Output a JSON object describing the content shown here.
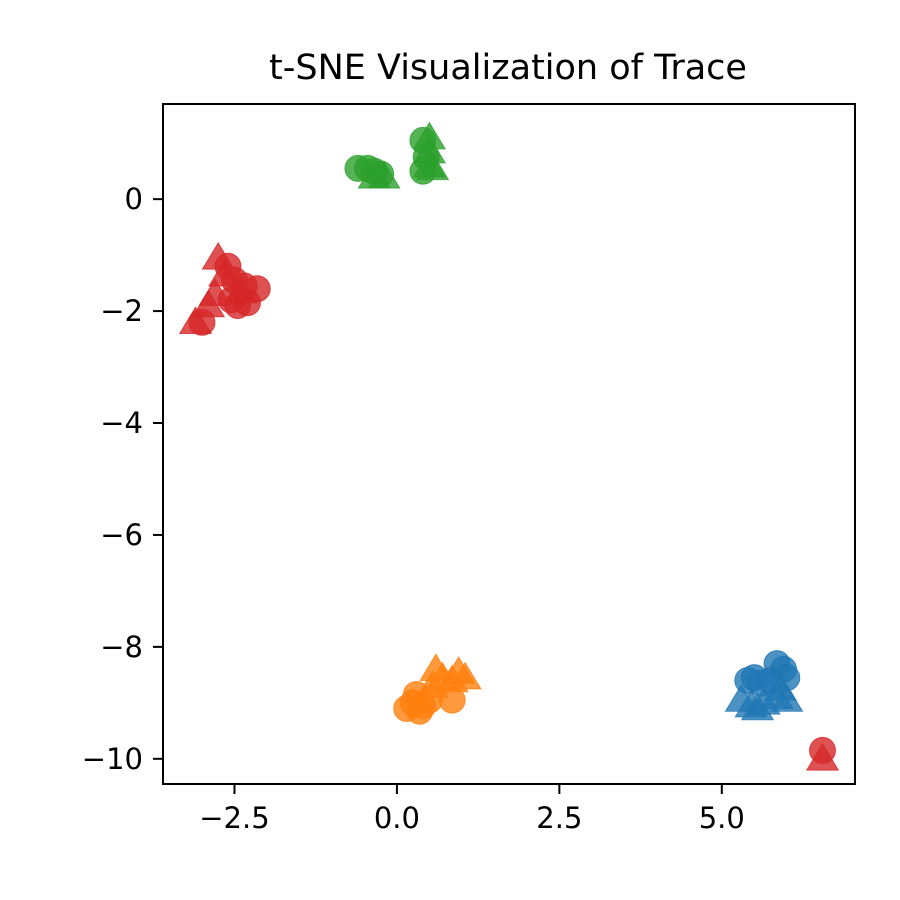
{
  "chart_data": {
    "type": "scatter",
    "title": "t-SNE Visualization of Trace",
    "xlabel": "",
    "ylabel": "",
    "xlim": [
      -3.6,
      7.05
    ],
    "ylim": [
      -10.45,
      1.7
    ],
    "xticks": [
      -2.5,
      0.0,
      2.5,
      5.0
    ],
    "xtick_labels": [
      "−2.5",
      "0.0",
      "2.5",
      "5.0"
    ],
    "yticks": [
      0,
      -2,
      -4,
      -6,
      -8,
      -10
    ],
    "ytick_labels": [
      "0",
      "−2",
      "−4",
      "−6",
      "−8",
      "−10"
    ],
    "grid": false,
    "legend": "none",
    "marker_types": [
      "circle",
      "triangle"
    ],
    "groups": [
      {
        "color": "#1f77b4",
        "points": [
          {
            "x": 5.4,
            "y": -8.6,
            "m": "circle"
          },
          {
            "x": 5.5,
            "y": -8.55,
            "m": "circle"
          },
          {
            "x": 5.6,
            "y": -8.65,
            "m": "circle"
          },
          {
            "x": 5.85,
            "y": -8.3,
            "m": "circle"
          },
          {
            "x": 5.95,
            "y": -8.4,
            "m": "circle"
          },
          {
            "x": 6.0,
            "y": -8.55,
            "m": "circle"
          },
          {
            "x": 5.75,
            "y": -8.6,
            "m": "circle"
          },
          {
            "x": 5.3,
            "y": -8.95,
            "m": "triangle"
          },
          {
            "x": 5.45,
            "y": -9.05,
            "m": "triangle"
          },
          {
            "x": 5.55,
            "y": -9.1,
            "m": "triangle"
          },
          {
            "x": 5.65,
            "y": -9.0,
            "m": "triangle"
          },
          {
            "x": 5.85,
            "y": -8.9,
            "m": "triangle"
          },
          {
            "x": 6.0,
            "y": -8.95,
            "m": "triangle"
          },
          {
            "x": 5.9,
            "y": -8.75,
            "m": "triangle"
          }
        ]
      },
      {
        "color": "#ff7f0e",
        "points": [
          {
            "x": 0.15,
            "y": -9.1,
            "m": "circle"
          },
          {
            "x": 0.25,
            "y": -9.0,
            "m": "circle"
          },
          {
            "x": 0.3,
            "y": -8.85,
            "m": "circle"
          },
          {
            "x": 0.4,
            "y": -9.05,
            "m": "circle"
          },
          {
            "x": 0.5,
            "y": -8.95,
            "m": "circle"
          },
          {
            "x": 0.35,
            "y": -9.15,
            "m": "circle"
          },
          {
            "x": 0.85,
            "y": -8.95,
            "m": "circle"
          },
          {
            "x": 0.55,
            "y": -8.7,
            "m": "triangle"
          },
          {
            "x": 0.6,
            "y": -8.4,
            "m": "triangle"
          },
          {
            "x": 0.7,
            "y": -8.55,
            "m": "triangle"
          },
          {
            "x": 0.85,
            "y": -8.6,
            "m": "triangle"
          },
          {
            "x": 0.95,
            "y": -8.45,
            "m": "triangle"
          },
          {
            "x": 1.05,
            "y": -8.55,
            "m": "triangle"
          }
        ]
      },
      {
        "color": "#2ca02c",
        "points": [
          {
            "x": -0.6,
            "y": 0.55,
            "m": "circle"
          },
          {
            "x": -0.45,
            "y": 0.55,
            "m": "circle"
          },
          {
            "x": -0.35,
            "y": 0.5,
            "m": "circle"
          },
          {
            "x": -0.25,
            "y": 0.45,
            "m": "circle"
          },
          {
            "x": 0.4,
            "y": 1.05,
            "m": "circle"
          },
          {
            "x": 0.45,
            "y": 0.75,
            "m": "circle"
          },
          {
            "x": 0.4,
            "y": 0.5,
            "m": "circle"
          },
          {
            "x": -0.35,
            "y": 0.4,
            "m": "triangle"
          },
          {
            "x": -0.2,
            "y": 0.4,
            "m": "triangle"
          },
          {
            "x": 0.5,
            "y": 1.1,
            "m": "triangle"
          },
          {
            "x": 0.5,
            "y": 0.85,
            "m": "triangle"
          },
          {
            "x": 0.55,
            "y": 0.55,
            "m": "triangle"
          },
          {
            "x": 0.5,
            "y": 0.6,
            "m": "triangle"
          }
        ]
      },
      {
        "color": "#d62728",
        "points": [
          {
            "x": -2.6,
            "y": -1.2,
            "m": "circle"
          },
          {
            "x": -2.5,
            "y": -1.45,
            "m": "circle"
          },
          {
            "x": -2.35,
            "y": -1.55,
            "m": "circle"
          },
          {
            "x": -2.55,
            "y": -1.8,
            "m": "circle"
          },
          {
            "x": -2.45,
            "y": -1.9,
            "m": "circle"
          },
          {
            "x": -2.3,
            "y": -1.85,
            "m": "circle"
          },
          {
            "x": -2.15,
            "y": -1.6,
            "m": "circle"
          },
          {
            "x": -3.0,
            "y": -2.2,
            "m": "circle"
          },
          {
            "x": -2.75,
            "y": -1.05,
            "m": "triangle"
          },
          {
            "x": -2.65,
            "y": -1.35,
            "m": "triangle"
          },
          {
            "x": -2.8,
            "y": -1.7,
            "m": "triangle"
          },
          {
            "x": -2.9,
            "y": -1.9,
            "m": "triangle"
          },
          {
            "x": -3.1,
            "y": -2.2,
            "m": "triangle"
          },
          {
            "x": -2.4,
            "y": -1.65,
            "m": "triangle"
          },
          {
            "x": 6.55,
            "y": -9.85,
            "m": "circle"
          },
          {
            "x": 6.55,
            "y": -10.0,
            "m": "triangle"
          }
        ]
      }
    ]
  }
}
